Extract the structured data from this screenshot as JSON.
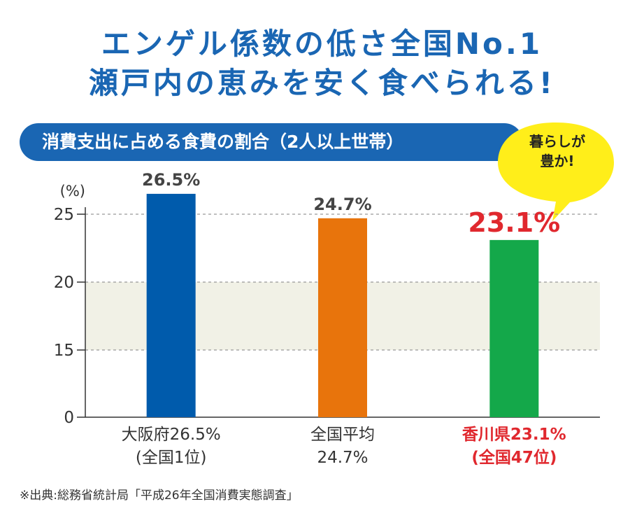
{
  "headline": {
    "line1": "エンゲル係数の低さ全国No.1",
    "line2": "瀬戸内の恵みを安く食べられる!"
  },
  "section_title": "消費支出に占める食費の割合（2人以上世帯）",
  "callout": {
    "line1": "暮らしが",
    "line2": "豊か!"
  },
  "source_note": "※出典:総務省統計局「平成26年全国消費実態調査」",
  "colors": {
    "brand_blue": "#1a66b3",
    "osaka": "#005bac",
    "national": "#e8740c",
    "kagawa": "#14a84a",
    "highlight_red": "#e0282e",
    "band": "#f1f1e6",
    "bubble": "#ffee1a"
  },
  "chart_data": {
    "type": "bar",
    "ylabel": "(%)",
    "yticks": [
      0,
      15,
      20,
      25
    ],
    "ylim": [
      0,
      27.5
    ],
    "axis_break": "between 0 and 15",
    "highlight_band": [
      15,
      20
    ],
    "grid": "dashed at 15, 20, 25",
    "bars": [
      {
        "category_line1": "大阪府26.5%",
        "category_line2": "(全国1位)",
        "value": 26.5,
        "value_label": "26.5%",
        "color": "#005bac",
        "highlight": false
      },
      {
        "category_line1": "全国平均",
        "category_line2": "24.7%",
        "value": 24.7,
        "value_label": "24.7%",
        "color": "#e8740c",
        "highlight": false
      },
      {
        "category_line1": "香川県23.1%",
        "category_line2": "(全国47位)",
        "value": 23.1,
        "value_label": "23.1%",
        "color": "#14a84a",
        "highlight": true
      }
    ]
  }
}
